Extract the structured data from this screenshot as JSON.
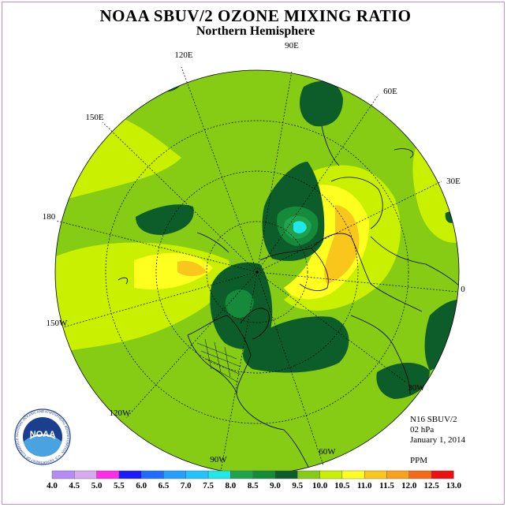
{
  "title": "NOAA SBUV/2 OZONE MIXING RATIO",
  "subtitle": "Northern Hemisphere",
  "longitude_labels": [
    "90E",
    "60E",
    "30E",
    "0",
    "30W",
    "60W",
    "90W",
    "120W",
    "150W",
    "180",
    "150E",
    "120E"
  ],
  "info": {
    "instrument": "N16 SBUV/2",
    "level": "02 hPa",
    "date": "January 1, 2014",
    "units": "PPM"
  },
  "colorbar": {
    "labels": [
      "4.0",
      "4.5",
      "5.0",
      "5.5",
      "6.0",
      "6.5",
      "7.0",
      "7.5",
      "8.0",
      "8.5",
      "9.0",
      "9.5",
      "10.0",
      "10.5",
      "11.0",
      "11.5",
      "12.0",
      "12.5",
      "13.0"
    ],
    "colors": [
      "#b58cf5",
      "#d9a9f0",
      "#ff2de6",
      "#1a1aff",
      "#1f6dff",
      "#23a0ff",
      "#22c3ff",
      "#20e8e8",
      "#1fa34f",
      "#148a3a",
      "#0c5d2a",
      "#86cc14",
      "#c8f000",
      "#ffff1f",
      "#f9c71c",
      "#f7a21a",
      "#f46a18",
      "#ee1010",
      "#8c5a2b"
    ]
  },
  "logo": {
    "text": "NOAA",
    "ring_text": "NATIONAL OCEANIC AND ATMOSPHERIC ADMINISTRATION · U.S. DEPARTMENT OF COMMERCE"
  }
}
